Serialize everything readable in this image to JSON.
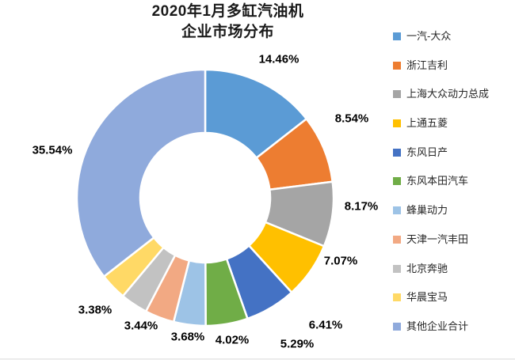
{
  "title": {
    "line1": "2020年1月多缸汽油机",
    "line2": "企业市场分布"
  },
  "chart_data": {
    "type": "pie",
    "subtype": "donut",
    "title": "2020年1月多缸汽油机企业市场分布",
    "start_angle_deg": 0,
    "direction": "clockwise",
    "inner_radius_ratio": 0.51,
    "legend_position": "right",
    "label_format": "percent",
    "slices": [
      {
        "name": "一汽-大众",
        "value": 14.46,
        "label": "14.46%",
        "color": "#5B9BD5"
      },
      {
        "name": "浙江吉利",
        "value": 8.54,
        "label": "8.54%",
        "color": "#ED7D31"
      },
      {
        "name": "上海大众动力总成",
        "value": 8.17,
        "label": "8.17%",
        "color": "#A5A5A5"
      },
      {
        "name": "上通五菱",
        "value": 7.07,
        "label": "7.07%",
        "color": "#FFC000"
      },
      {
        "name": "东风日产",
        "value": 6.41,
        "label": "6.41%",
        "color": "#4472C4"
      },
      {
        "name": "东风本田汽车",
        "value": 5.29,
        "label": "5.29%",
        "color": "#70AD47"
      },
      {
        "name": "蜂巢动力",
        "value": 4.02,
        "label": "4.02%",
        "color": "#9DC3E6"
      },
      {
        "name": "天津一汽丰田",
        "value": 3.68,
        "label": "3.68%",
        "color": "#F2A983"
      },
      {
        "name": "北京奔驰",
        "value": 3.44,
        "label": "3.44%",
        "color": "#C2C2C2"
      },
      {
        "name": "华晨宝马",
        "value": 3.38,
        "label": "3.38%",
        "color": "#FFD966"
      },
      {
        "name": "其他企业合计",
        "value": 35.54,
        "label": "35.54%",
        "color": "#8FAADC"
      }
    ]
  }
}
